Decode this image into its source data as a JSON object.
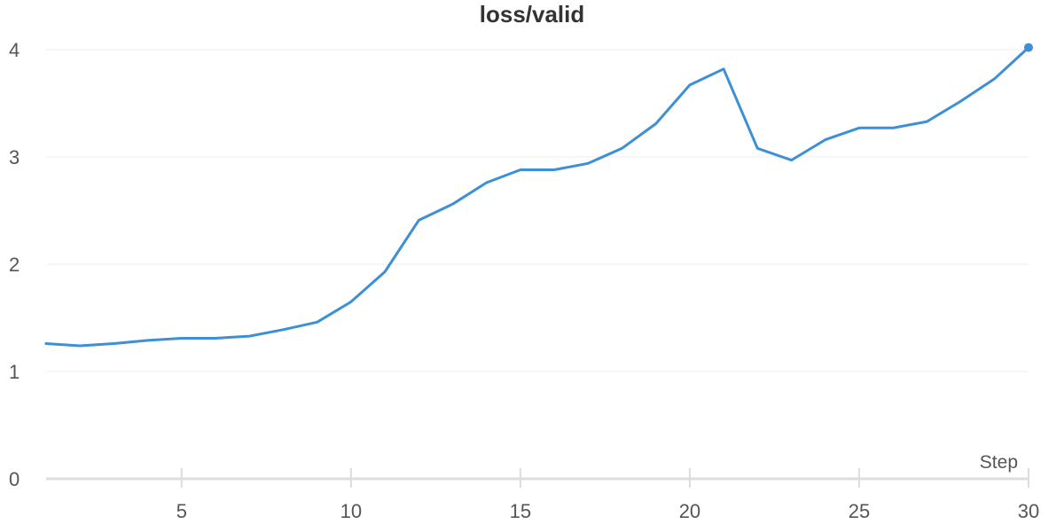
{
  "chart_data": {
    "type": "line",
    "title": "loss/valid",
    "xlabel": "Step",
    "ylabel": "",
    "xlim": [
      1,
      30
    ],
    "ylim": [
      0,
      4
    ],
    "x_ticks": [
      5,
      10,
      15,
      20,
      25,
      30
    ],
    "y_ticks": [
      0,
      1,
      2,
      3,
      4
    ],
    "grid": true,
    "line_color": "#3d8fd6",
    "gridline_color": "#ececec",
    "axis_color": "#dddddd",
    "series": [
      {
        "x": [
          1,
          2,
          3,
          4,
          5,
          6,
          7,
          8,
          9,
          10,
          11,
          12,
          13,
          14,
          15,
          16,
          17,
          18,
          19,
          20,
          21,
          22,
          23,
          24,
          25,
          26,
          27,
          28,
          29,
          30
        ],
        "values": [
          1.26,
          1.24,
          1.26,
          1.29,
          1.31,
          1.31,
          1.33,
          1.39,
          1.46,
          1.65,
          1.93,
          2.41,
          2.56,
          2.76,
          2.88,
          2.88,
          2.94,
          3.08,
          3.31,
          3.67,
          3.82,
          3.08,
          2.97,
          3.16,
          3.27,
          3.27,
          3.33,
          3.52,
          3.73,
          4.02
        ]
      }
    ]
  }
}
